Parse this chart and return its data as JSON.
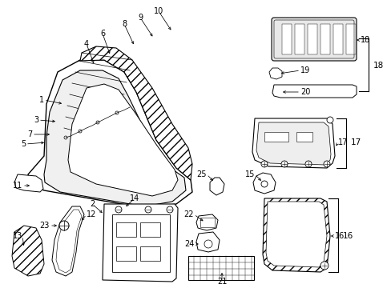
{
  "bg_color": "#ffffff",
  "fig_width": 4.89,
  "fig_height": 3.6,
  "dpi": 100,
  "line_color": "#000000",
  "hatch_color": "#000000"
}
